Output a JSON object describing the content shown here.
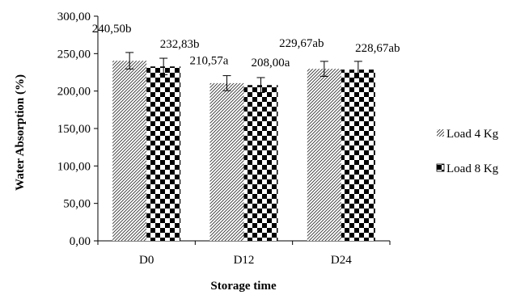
{
  "chart_data": {
    "type": "bar",
    "xlabel": "Storage time",
    "ylabel": "Water Absorption (%)",
    "ylim": [
      0,
      300
    ],
    "yticks": [
      "0,00",
      "50,00",
      "100,00",
      "150,00",
      "200,00",
      "250,00",
      "300,00"
    ],
    "categories": [
      "D0",
      "D12",
      "D24"
    ],
    "legend_position": "right",
    "grid": false,
    "series": [
      {
        "name": "Load 4 Kg",
        "pattern": "diagonal-hatch",
        "values": [
          240.5,
          210.57,
          229.67
        ],
        "errors": [
          11,
          10,
          10
        ],
        "labels": [
          "240,50b",
          "210,57a",
          "229,67ab"
        ]
      },
      {
        "name": "Load 8 Kg",
        "pattern": "checkerboard",
        "values": [
          232.83,
          208.0,
          228.67
        ],
        "errors": [
          11,
          10,
          11
        ],
        "labels": [
          "232,83b",
          "208,00a",
          "228,67ab"
        ]
      }
    ]
  }
}
